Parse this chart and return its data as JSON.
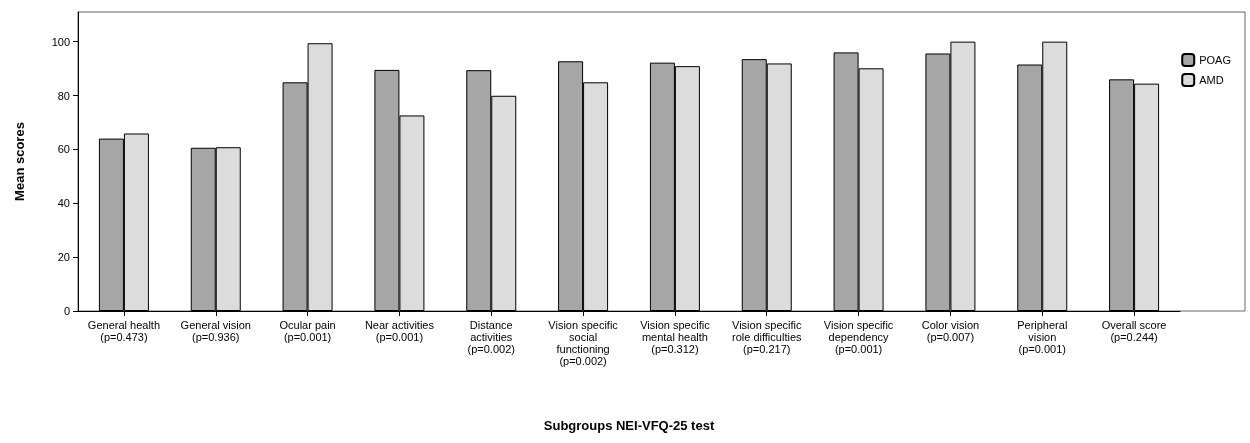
{
  "chart_data": {
    "type": "bar",
    "xlabel": "Subgroups NEI-VFQ-25 test",
    "ylabel": "Mean scores",
    "categories": [
      "General health\n(p=0.473)",
      "General vision\n(p=0.936)",
      "Ocular pain\n(p=0.001)",
      "Near activities\n(p=0.001)",
      "Distance\nactivities\n(p=0.002)",
      "Vision specific\nsocial\nfunctioning\n(p=0.002)",
      "Vision specific\nmental health\n(p=0.312)",
      "Vision specific\nrole difficulties\n(p=0.217)",
      "Vision specific\ndependency\n(p=0.001)",
      "Color vision\n(p=0.007)",
      "Peripheral\nvision\n(p=0.001)",
      "Overall score\n(p=0.244)"
    ],
    "series": [
      {
        "name": "POAG",
        "color": "#a6a6a6",
        "values": [
          64.0,
          60.6,
          84.9,
          89.5,
          89.4,
          92.7,
          92.2,
          93.5,
          96.0,
          95.6,
          91.5,
          86.0
        ]
      },
      {
        "name": "AMD",
        "color": "#dcdcdc",
        "values": [
          65.9,
          60.8,
          99.4,
          72.6,
          79.9,
          84.9,
          90.9,
          91.9,
          90.1,
          100,
          100,
          84.4
        ]
      }
    ],
    "ylim": [
      0,
      111
    ],
    "yticks": [
      0,
      20,
      40,
      60,
      80,
      100
    ],
    "grid": false,
    "legend": "top right"
  }
}
